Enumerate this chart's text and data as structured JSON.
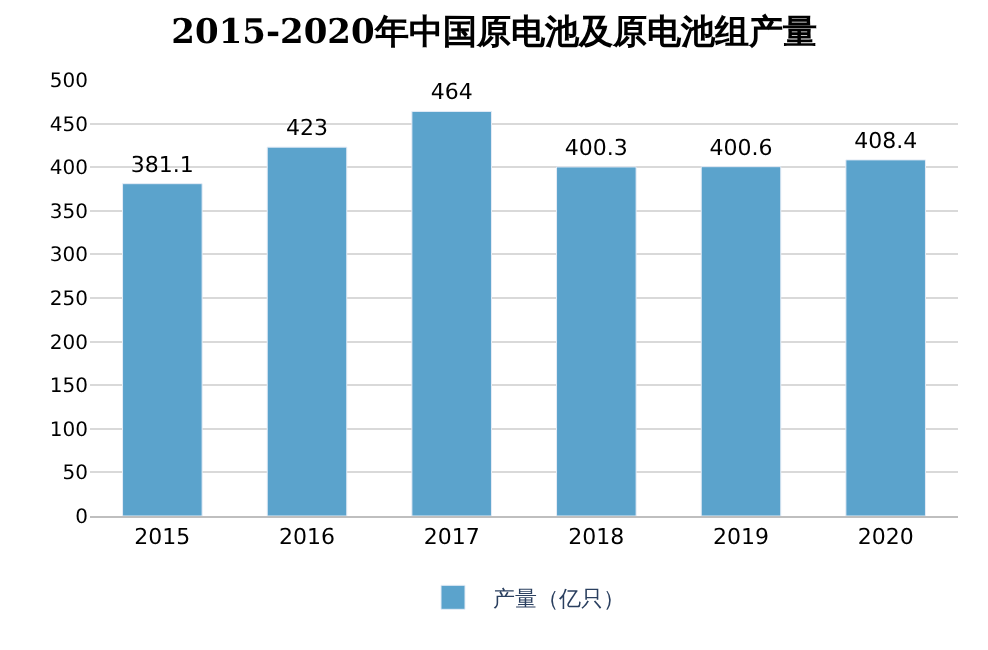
{
  "chart_data": {
    "type": "bar",
    "title": "2015-2020年中国原电池及原电池组产量",
    "categories": [
      "2015",
      "2016",
      "2017",
      "2018",
      "2019",
      "2020"
    ],
    "series": [
      {
        "name": "产量（亿只）",
        "color": "#5ba3cc",
        "values": [
          381.1,
          423,
          464,
          400.3,
          400.6,
          408.4
        ]
      }
    ],
    "ylim": [
      0,
      500
    ],
    "yticks": [
      0,
      50,
      100,
      150,
      200,
      250,
      300,
      350,
      400,
      450,
      500
    ],
    "grid": "y",
    "legend": "bottom",
    "data_labels": true
  }
}
